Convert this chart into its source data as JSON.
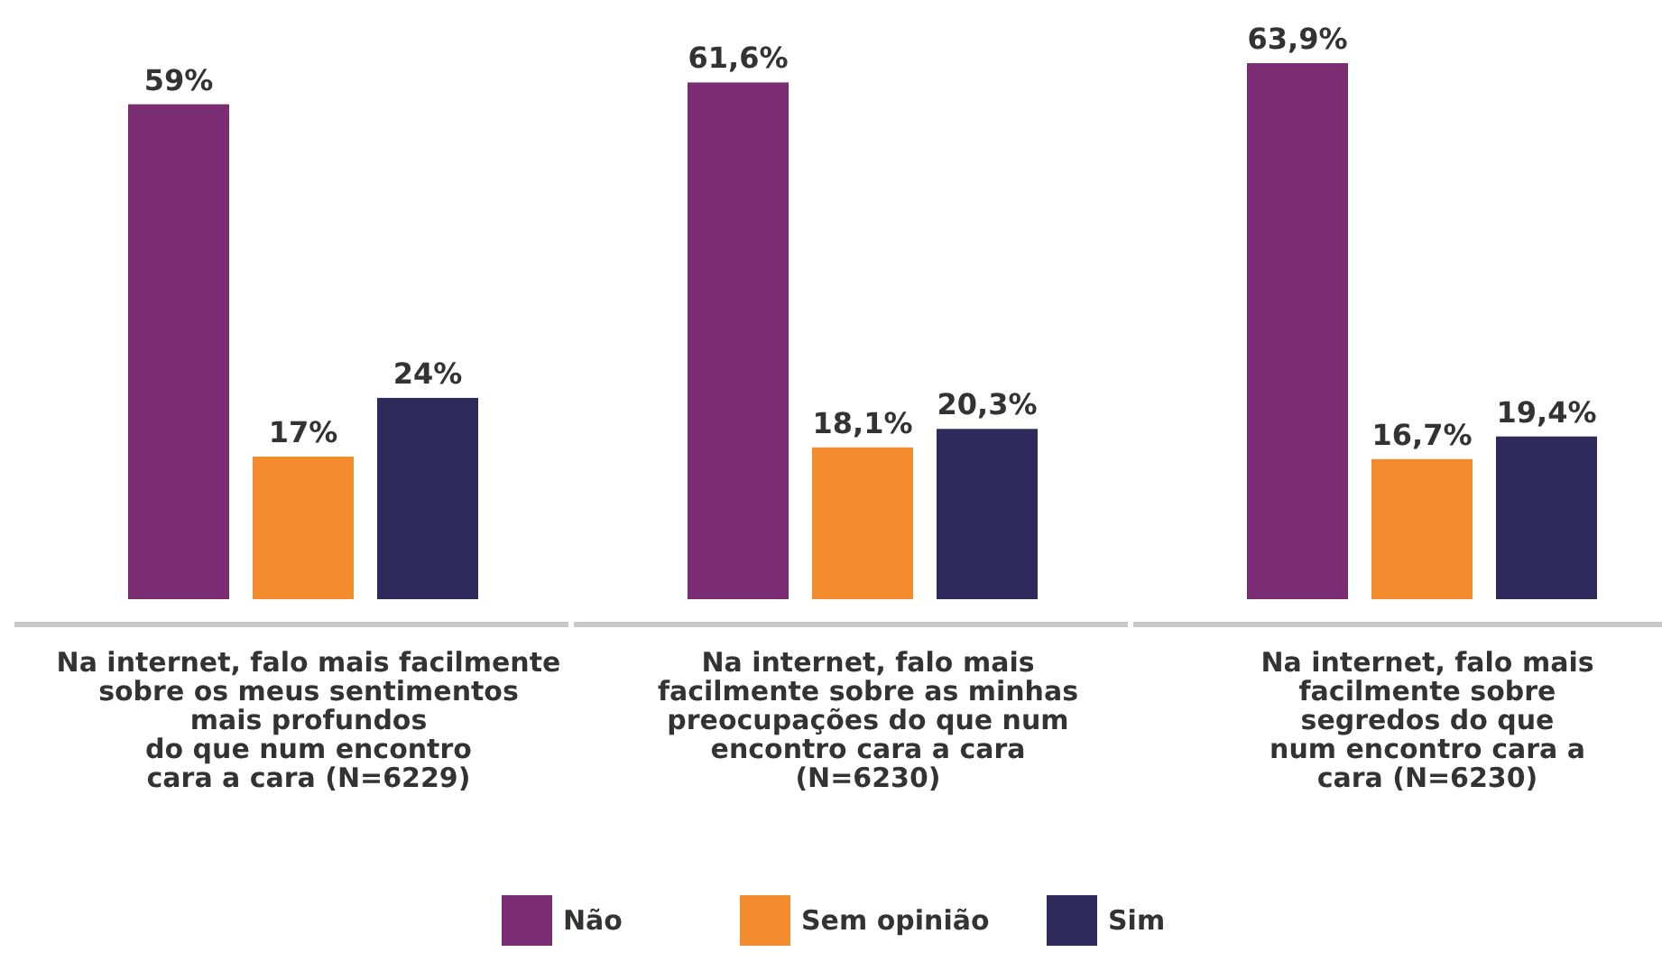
{
  "chart_data": {
    "type": "bar",
    "categories": [
      "Na internet, falo mais facilmente\nsobre os meus sentimentos\nmais profundos\ndo que num encontro\ncara a cara (N=6229)",
      "Na internet, falo mais\nfacilmente sobre as minhas\npreocupações do que num\nencontro cara a cara\n(N=6230)",
      "Na internet, falo mais\nfacilmente sobre\nsegredos do que\nnum encontro cara a\ncara (N=6230)"
    ],
    "series": [
      {
        "name": "Não",
        "color": "#7b2d73",
        "values": [
          59,
          61.6,
          63.9
        ],
        "value_labels": [
          "59%",
          "61,6%",
          "63,9%"
        ]
      },
      {
        "name": "Sem opinião",
        "color": "#f28c2e",
        "values": [
          17,
          18.1,
          16.7
        ],
        "value_labels": [
          "17%",
          "18,1%",
          "16,7%"
        ]
      },
      {
        "name": "Sim",
        "color": "#2f2a5c",
        "values": [
          24,
          20.3,
          19.4
        ],
        "value_labels": [
          "24%",
          "20,3%",
          "19,4%"
        ]
      }
    ],
    "legend": "bottom"
  }
}
